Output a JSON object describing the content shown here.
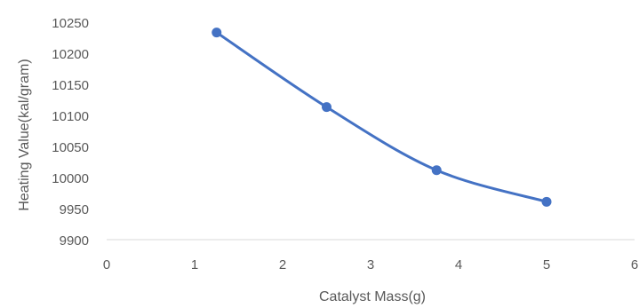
{
  "chart_data": {
    "type": "line",
    "title": "",
    "xlabel": "Catalyst Mass(g)",
    "ylabel": "Heating Value(kal/gram)",
    "xlim": [
      0,
      6
    ],
    "ylim": [
      9900,
      10250
    ],
    "x_ticks": [
      "0",
      "1",
      "2",
      "3",
      "4",
      "5",
      "6"
    ],
    "y_ticks": [
      "9900",
      "9950",
      "10000",
      "10050",
      "10100",
      "10150",
      "10200",
      "10250"
    ],
    "grid": false,
    "legend": "none",
    "smooth": true,
    "series": [
      {
        "color": "#4472C4",
        "marker": "circle",
        "x": [
          1.25,
          2.5,
          3.75,
          5
        ],
        "y": [
          10228,
          10110,
          10010,
          9960
        ]
      }
    ]
  }
}
